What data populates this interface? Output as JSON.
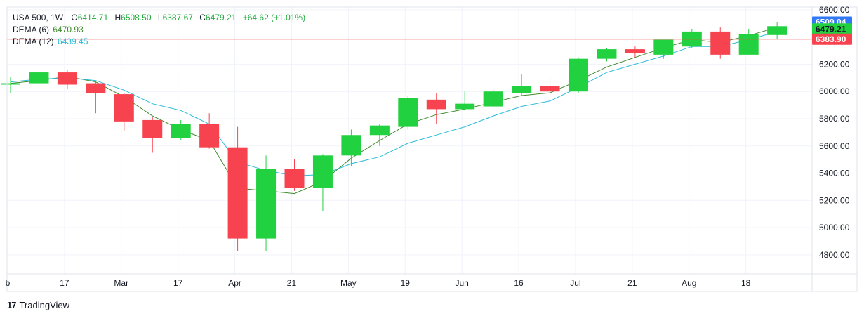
{
  "legend": {
    "symbol": "USA 500, 1W",
    "open_label": "O",
    "open": "6414.71",
    "high_label": "H",
    "high": "6508.50",
    "low_label": "L",
    "low": "6387.67",
    "close_label": "C",
    "close": "6479.21",
    "change": "+64.62 (+1.01%)",
    "dema6_label": "DEMA (6)",
    "dema6_value": "6470.93",
    "dema12_label": "DEMA (12)",
    "dema12_value": "6439.45"
  },
  "brand": {
    "logo": "17",
    "name": "TradingView"
  },
  "colors": {
    "up": "#22d13f",
    "down": "#f7434f",
    "dema6": "#3d8b2c",
    "dema12": "#2bbbd9",
    "grid": "#f0f3fa",
    "axis_text": "#131722",
    "price_line": "#f7434f",
    "high_line": "#3179f5",
    "change": "#22ab3f"
  },
  "chart_data": {
    "type": "candlestick",
    "interval": "1W",
    "symbol": "USA 500",
    "ylim": [
      4660,
      6620
    ],
    "y_ticks": [
      6600,
      6400,
      6200,
      6000,
      5800,
      5600,
      5400,
      5200,
      5000,
      4800
    ],
    "y_tick_labels": [
      "6600.00",
      "6400.00",
      "6200.00",
      "6000.00",
      "5800.00",
      "5600.00",
      "5400.00",
      "5200.00",
      "5000.00",
      "4800.00"
    ],
    "x_labels": [
      {
        "index": -0.1,
        "text": "b"
      },
      {
        "index": 1.9,
        "text": "17"
      },
      {
        "index": 3.9,
        "text": "Mar"
      },
      {
        "index": 5.9,
        "text": "17"
      },
      {
        "index": 7.9,
        "text": "Apr"
      },
      {
        "index": 9.9,
        "text": "21"
      },
      {
        "index": 11.9,
        "text": "May"
      },
      {
        "index": 13.9,
        "text": "19"
      },
      {
        "index": 15.9,
        "text": "Jun"
      },
      {
        "index": 17.9,
        "text": "16"
      },
      {
        "index": 19.9,
        "text": "Jul"
      },
      {
        "index": 21.9,
        "text": "21"
      },
      {
        "index": 23.9,
        "text": "Aug"
      },
      {
        "index": 25.9,
        "text": "18"
      }
    ],
    "candles": [
      {
        "o": 6050,
        "h": 6110,
        "l": 5990,
        "c": 6060
      },
      {
        "o": 6060,
        "h": 6150,
        "l": 6030,
        "c": 6140
      },
      {
        "o": 6140,
        "h": 6160,
        "l": 6020,
        "c": 6050
      },
      {
        "o": 6060,
        "h": 6080,
        "l": 5840,
        "c": 5990
      },
      {
        "o": 5980,
        "h": 5990,
        "l": 5710,
        "c": 5780
      },
      {
        "o": 5790,
        "h": 5810,
        "l": 5550,
        "c": 5660
      },
      {
        "o": 5660,
        "h": 5790,
        "l": 5640,
        "c": 5760
      },
      {
        "o": 5760,
        "h": 5840,
        "l": 5580,
        "c": 5590
      },
      {
        "o": 5590,
        "h": 5740,
        "l": 4830,
        "c": 4920
      },
      {
        "o": 4920,
        "h": 5530,
        "l": 4830,
        "c": 5430
      },
      {
        "o": 5430,
        "h": 5500,
        "l": 5270,
        "c": 5290
      },
      {
        "o": 5290,
        "h": 5540,
        "l": 5120,
        "c": 5530
      },
      {
        "o": 5530,
        "h": 5720,
        "l": 5450,
        "c": 5680
      },
      {
        "o": 5680,
        "h": 5760,
        "l": 5600,
        "c": 5750
      },
      {
        "o": 5740,
        "h": 5970,
        "l": 5720,
        "c": 5950
      },
      {
        "o": 5940,
        "h": 5990,
        "l": 5760,
        "c": 5870
      },
      {
        "o": 5870,
        "h": 6000,
        "l": 5860,
        "c": 5910
      },
      {
        "o": 5890,
        "h": 6020,
        "l": 5880,
        "c": 6000
      },
      {
        "o": 5990,
        "h": 6130,
        "l": 5970,
        "c": 6040
      },
      {
        "o": 6040,
        "h": 6110,
        "l": 5960,
        "c": 6000
      },
      {
        "o": 6000,
        "h": 6250,
        "l": 5990,
        "c": 6240
      },
      {
        "o": 6240,
        "h": 6320,
        "l": 6220,
        "c": 6310
      },
      {
        "o": 6310,
        "h": 6330,
        "l": 6250,
        "c": 6280
      },
      {
        "o": 6270,
        "h": 6380,
        "l": 6240,
        "c": 6380
      },
      {
        "o": 6330,
        "h": 6460,
        "l": 6320,
        "c": 6440
      },
      {
        "o": 6440,
        "h": 6470,
        "l": 6240,
        "c": 6270
      },
      {
        "o": 6270,
        "h": 6460,
        "l": 6270,
        "c": 6420
      },
      {
        "o": 6414.71,
        "h": 6508.5,
        "l": 6387.67,
        "c": 6479.21
      }
    ],
    "series": [
      {
        "name": "DEMA (6)",
        "values": [
          6060,
          6080,
          6110,
          6070,
          5960,
          5820,
          5720,
          5640,
          5290,
          5270,
          5250,
          5340,
          5510,
          5640,
          5760,
          5830,
          5870,
          5920,
          5970,
          5990,
          6080,
          6180,
          6250,
          6320,
          6380,
          6360,
          6410,
          6470.93
        ]
      },
      {
        "name": "DEMA (12)",
        "values": [
          6070,
          6090,
          6100,
          6080,
          6010,
          5910,
          5860,
          5760,
          5480,
          5420,
          5380,
          5390,
          5470,
          5520,
          5620,
          5680,
          5740,
          5820,
          5890,
          5930,
          6030,
          6140,
          6200,
          6260,
          6330,
          6330,
          6380,
          6439.45
        ]
      }
    ],
    "price_labels": [
      {
        "name": "high",
        "value": 6509.04,
        "text": "6509.04"
      },
      {
        "name": "close",
        "value": 6479.21,
        "text": "6479.21"
      },
      {
        "name": "price-line",
        "value": 6383.9,
        "text": "6383.90"
      }
    ]
  }
}
